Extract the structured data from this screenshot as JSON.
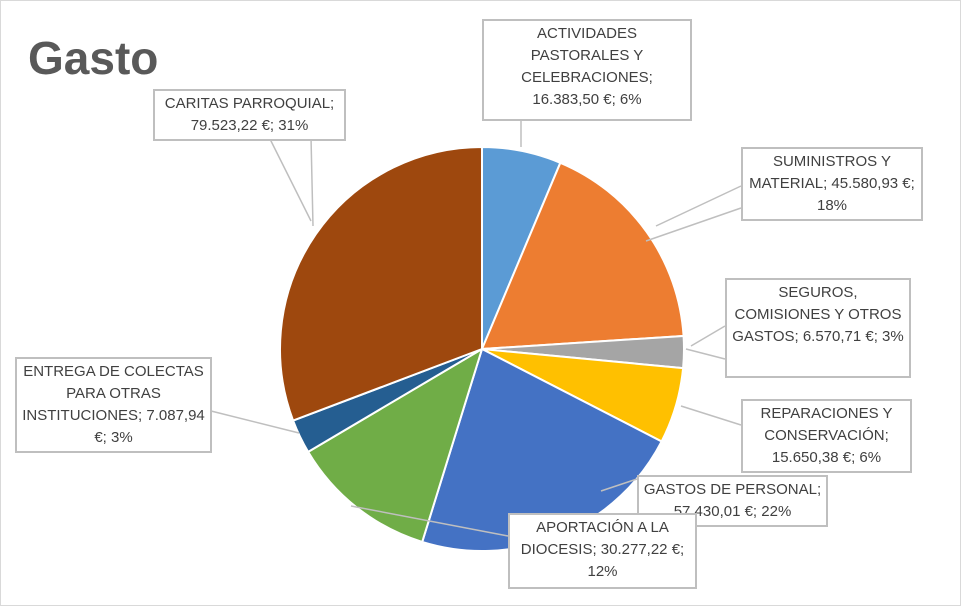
{
  "chart_data": {
    "type": "pie",
    "title": "Gasto",
    "slices": [
      {
        "name": "ACTIVIDADES PASTORALES Y CELEBRACIONES",
        "value": 16383.5,
        "value_label": "16.383,50 €",
        "percent": "6%",
        "color": "#5B9BD5"
      },
      {
        "name": "SUMINISTROS Y MATERIAL",
        "value": 45580.93,
        "value_label": "45.580,93 €",
        "percent": "18%",
        "color": "#ED7D31"
      },
      {
        "name": "SEGUROS, COMISIONES Y OTROS GASTOS",
        "value": 6570.71,
        "value_label": "6.570,71 €",
        "percent": "3%",
        "color": "#A5A5A5"
      },
      {
        "name": "REPARACIONES Y CONSERVACIÓN",
        "value": 15650.38,
        "value_label": "15.650,38 €",
        "percent": "6%",
        "color": "#FFC000"
      },
      {
        "name": "GASTOS DE PERSONAL",
        "value": 57430.01,
        "value_label": "57.430,01 €",
        "percent": "22%",
        "color": "#4472C4"
      },
      {
        "name": "APORTACIÓN A LA DIOCESIS",
        "value": 30277.22,
        "value_label": "30.277,22 €",
        "percent": "12%",
        "color": "#70AD47"
      },
      {
        "name": "ENTREGA DE COLECTAS PARA OTRAS INSTITUCIONES",
        "value": 7087.94,
        "value_label": "7.087,94 €",
        "percent": "3%",
        "color": "#255E91"
      },
      {
        "name": "CARITAS PARROQUIAL",
        "value": 79523.22,
        "value_label": "79.523,22 €",
        "percent": "31%",
        "color": "#9E480E"
      }
    ],
    "legend": "none"
  }
}
